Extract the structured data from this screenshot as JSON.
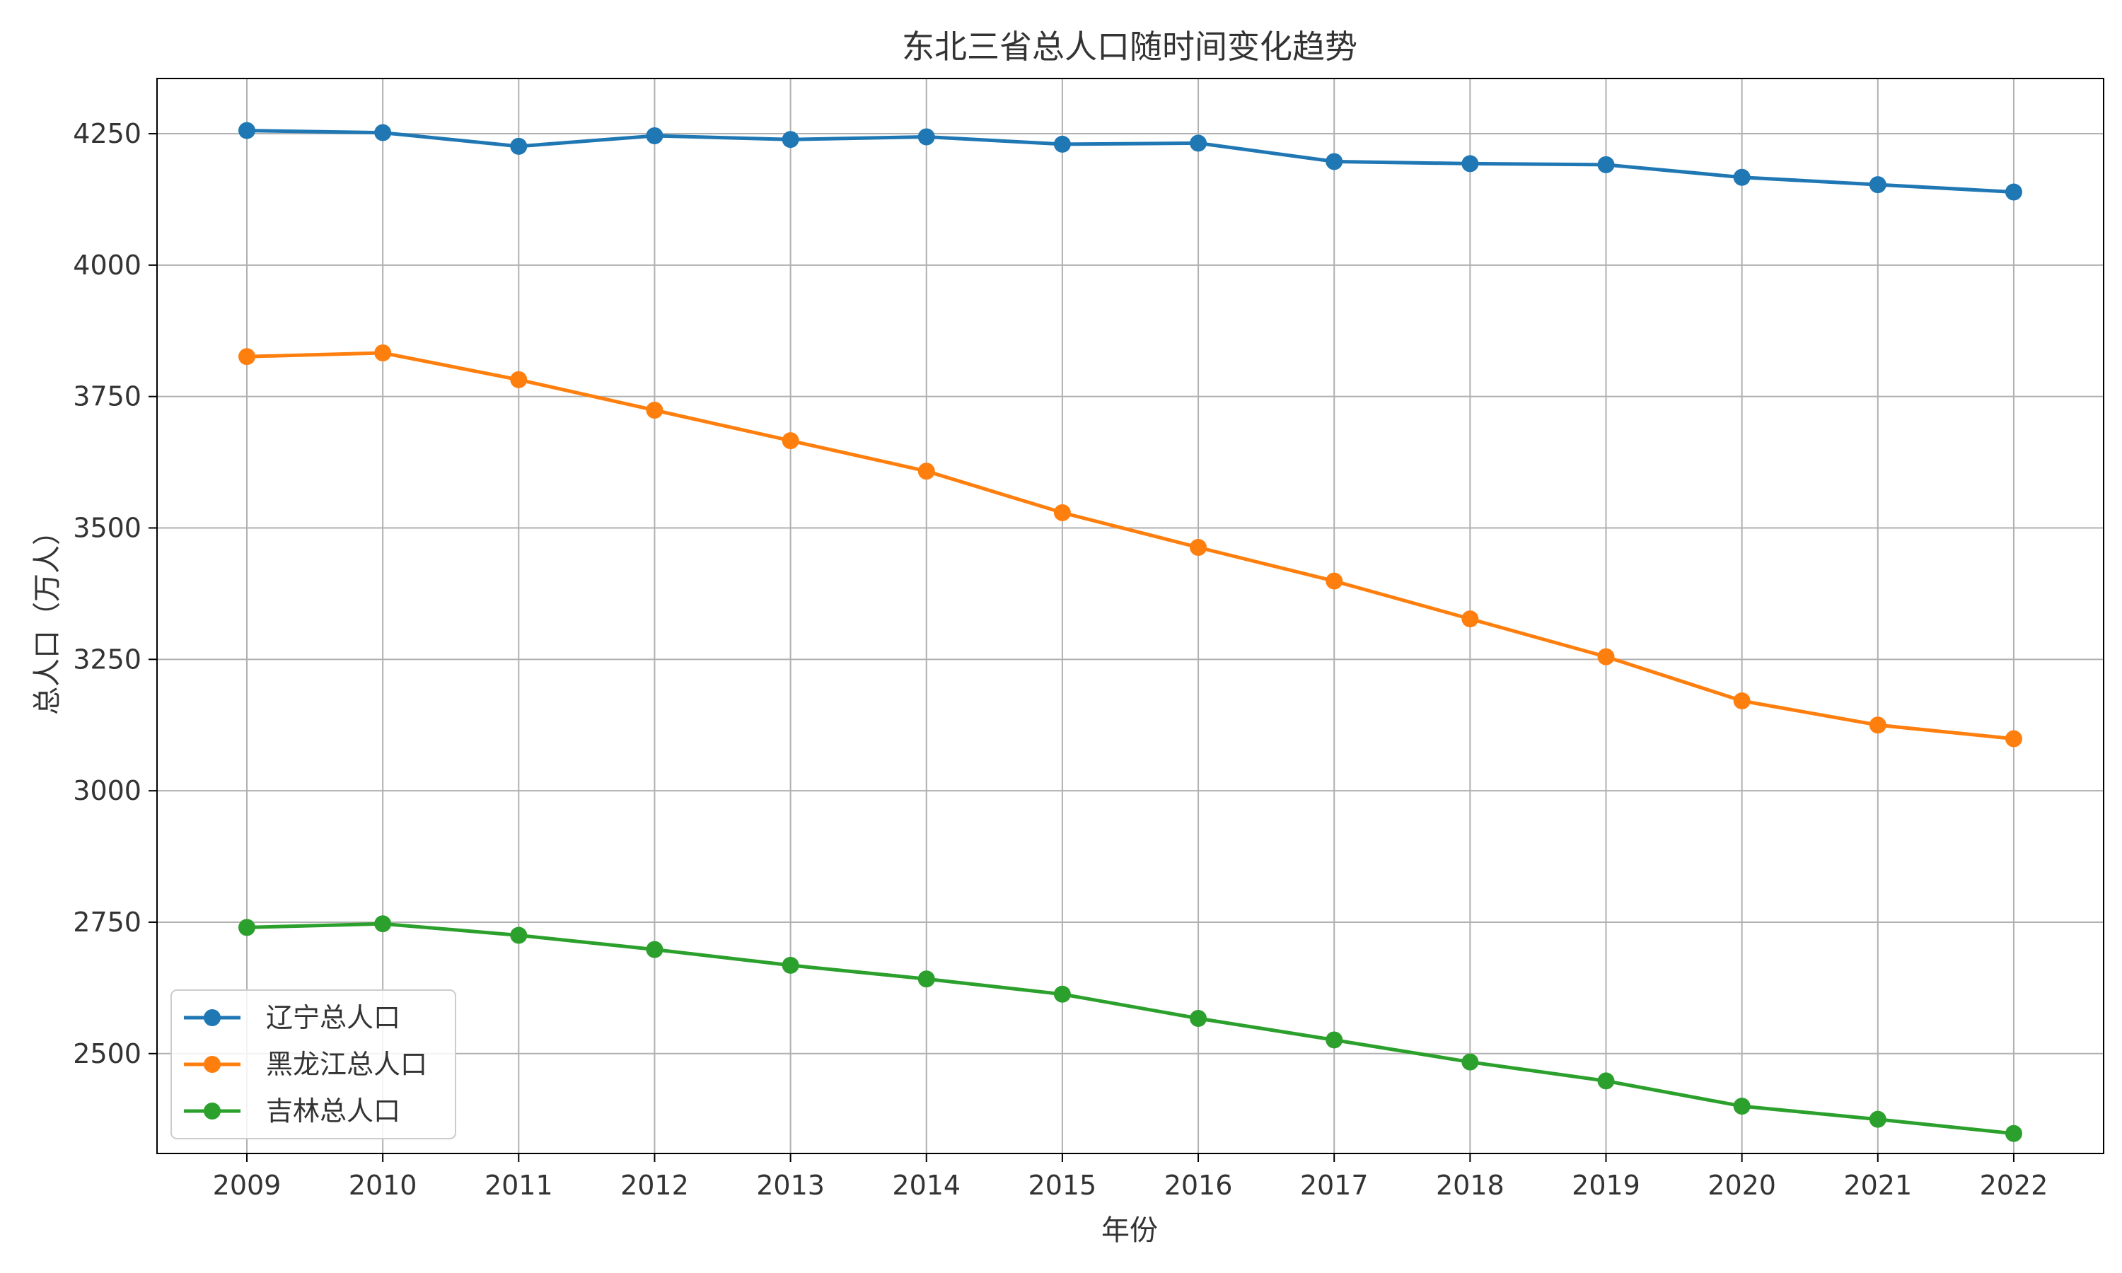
{
  "chart_data": {
    "type": "line",
    "title": "东北三省总人口随时间变化趋势",
    "xlabel": "年份",
    "ylabel": "总人口（万人）",
    "categories": [
      "2009",
      "2010",
      "2011",
      "2012",
      "2013",
      "2014",
      "2015",
      "2016",
      "2017",
      "2018",
      "2019",
      "2020",
      "2021",
      "2022"
    ],
    "y_ticks": [
      "2500",
      "2750",
      "3000",
      "3250",
      "3500",
      "3750",
      "4000",
      "4250"
    ],
    "ylim": [
      2310,
      4355
    ],
    "grid": true,
    "legend_position": "lower-left",
    "series": [
      {
        "name": "辽宁总人口",
        "color": "#1f77b4",
        "values": [
          4256,
          4252,
          4226,
          4246,
          4239,
          4244,
          4230,
          4232,
          4197,
          4193,
          4191,
          4167,
          4153,
          4139
        ]
      },
      {
        "name": "黑龙江总人口",
        "color": "#ff7f0e",
        "values": [
          3826,
          3833,
          3782,
          3724,
          3666,
          3608,
          3529,
          3463,
          3399,
          3327,
          3255,
          3171,
          3125,
          3099
        ]
      },
      {
        "name": "吉林总人口",
        "color": "#2ca02c",
        "values": [
          2740,
          2747,
          2725,
          2698,
          2668,
          2642,
          2613,
          2567,
          2526,
          2484,
          2448,
          2400,
          2375,
          2348
        ]
      }
    ]
  }
}
